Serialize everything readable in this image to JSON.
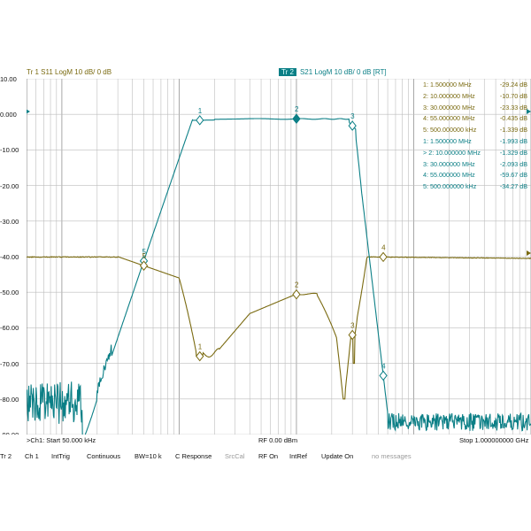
{
  "header": {
    "trace1": "Tr 1   S11  LogM  10 dB/  0 dB",
    "trace2_tag": "Tr 2",
    "trace2": "S21  LogM  10 dB/  0 dB  [RT]"
  },
  "y_axis": {
    "labels": [
      "10.00",
      "0.000",
      "-10.00",
      "-20.00",
      "-30.00",
      "-40.00",
      "-50.00",
      "-60.00",
      "-70.00",
      "-80.00",
      "-90.00"
    ]
  },
  "markers": {
    "s11": [
      {
        "id": "1:",
        "freq": "1.500000 MHz",
        "val": "-29.24 dB"
      },
      {
        "id": "2:",
        "freq": "10.000000 MHz",
        "val": "-10.70 dB"
      },
      {
        "id": "3:",
        "freq": "30.000000 MHz",
        "val": "-23.33 dB"
      },
      {
        "id": "4:",
        "freq": "55.000000 MHz",
        "val": "-0.435 dB"
      },
      {
        "id": "5:",
        "freq": "500.000000 kHz",
        "val": "-1.339 dB"
      }
    ],
    "s21": [
      {
        "id": "1:",
        "freq": "1.500000 MHz",
        "val": "-1.993 dB"
      },
      {
        "id": "> 2:",
        "freq": "10.000000 MHz",
        "val": "-1.329 dB"
      },
      {
        "id": "3:",
        "freq": "30.000000 MHz",
        "val": "-2.093 dB"
      },
      {
        "id": "4:",
        "freq": "55.000000 MHz",
        "val": "-59.67 dB"
      },
      {
        "id": "5:",
        "freq": "500.000000 kHz",
        "val": "-34.27 dB"
      }
    ]
  },
  "bottom": {
    "start": ">Ch1: Start 50.000 kHz",
    "rf": "RF 0.00 dBm",
    "stop": "Stop 1.000000000 GHz"
  },
  "softkeys": [
    "Tr 2",
    "Ch 1",
    "IntTrig",
    "Continuous",
    "BW=10 k",
    "C Response",
    "SrcCal",
    "RF On",
    "IntRef",
    "Update On",
    "no messages"
  ],
  "colors": {
    "s11": "#7a6a10",
    "s21": "#0b7f86",
    "grid": "#bdbdbd"
  }
}
